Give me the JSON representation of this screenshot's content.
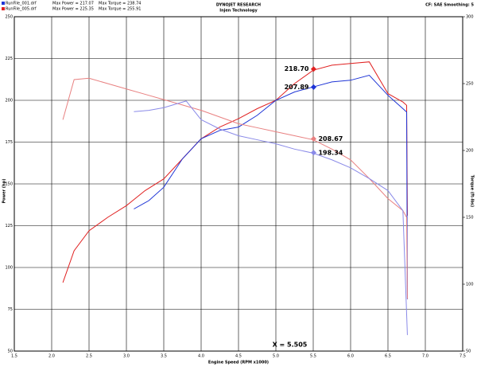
{
  "chart_data": {
    "type": "line",
    "title": "DYNOJET RESEARCH",
    "subtitle": "Injen Technology",
    "corner_note": "CF: SAE Smoothing: 5",
    "xlabel": "Engine Speed (RPM x1000)",
    "ylabel": "Power (hp)",
    "y2label": "Torque (ft-lbs)",
    "xlim": [
      1.5,
      7.5
    ],
    "xticks": [
      1.5,
      {
        "value": 2,
        "label": "2.0"
      },
      2.5,
      {
        "value": 3,
        "label": "3.0"
      },
      3.5,
      {
        "value": 4,
        "label": "4.0"
      },
      4.5,
      {
        "value": 5,
        "label": "5.0"
      },
      5.5,
      {
        "value": 6,
        "label": "6.0"
      },
      6.5,
      {
        "value": 7,
        "label": "7.0"
      },
      7.5
    ],
    "ylim": [
      50,
      250
    ],
    "yticks": [
      50,
      75,
      100,
      125,
      150,
      175,
      200,
      225,
      250
    ],
    "y2lim": [
      50,
      300
    ],
    "y2ticks": [
      50,
      100,
      150,
      200,
      250,
      300
    ],
    "grid": true,
    "legend": [
      {
        "file": "RunFile_001.drf",
        "power": "Max Power = 217.07",
        "torque": "Max Torque = 238.74",
        "color": "#1f35d6"
      },
      {
        "file": "RunFile_005.drf",
        "power": "Max Power = 225.35",
        "torque": "Max Torque = 255.91",
        "color": "#e02020"
      }
    ],
    "series": [
      {
        "color": "#e02020",
        "x": [
          2.15,
          2.3,
          2.5,
          2.75,
          3.0,
          3.25,
          3.5,
          3.75,
          4.0,
          4.25,
          4.5,
          4.75,
          5.0,
          5.25,
          5.5,
          5.75,
          6.0,
          6.25,
          6.5,
          6.7,
          6.75,
          6.76
        ],
        "values": [
          91,
          110,
          122,
          130,
          137,
          146,
          153,
          165,
          177,
          184,
          189,
          195,
          200,
          210,
          218,
          221,
          222,
          223,
          204,
          199,
          197,
          131
        ]
      },
      {
        "color": "#1f35d6",
        "x": [
          3.1,
          3.3,
          3.5,
          3.75,
          4.0,
          4.25,
          4.5,
          4.75,
          5.0,
          5.25,
          5.5,
          5.75,
          6.0,
          6.25,
          6.5,
          6.75,
          6.76
        ],
        "values": [
          135,
          140,
          148,
          165,
          177,
          182,
          184,
          191,
          200,
          205,
          208,
          211,
          212,
          215,
          203,
          193,
          81
        ]
      },
      {
        "color": "#e88080",
        "axis": "y2",
        "x": [
          2.15,
          2.3,
          2.5,
          2.75,
          3.0,
          3.25,
          3.5,
          3.75,
          4.0,
          4.25,
          4.5,
          4.75,
          5.0,
          5.25,
          5.5,
          5.75,
          6.0,
          6.25,
          6.5,
          6.7,
          6.75,
          6.76
        ],
        "values": [
          223,
          253,
          254,
          250,
          246,
          242,
          238,
          234,
          230,
          225,
          220,
          217,
          214,
          211,
          208,
          201,
          193,
          179,
          164,
          155,
          150,
          89
        ]
      },
      {
        "color": "#8a8ae8",
        "axis": "y2",
        "x": [
          3.1,
          3.3,
          3.5,
          3.8,
          4.0,
          4.25,
          4.5,
          4.75,
          5.0,
          5.25,
          5.5,
          5.75,
          6.0,
          6.25,
          6.5,
          6.7,
          6.76
        ],
        "values": [
          229,
          230,
          232,
          237,
          223,
          216,
          211,
          208,
          205,
          201,
          198,
          193,
          187,
          179,
          170,
          155,
          62
        ]
      }
    ],
    "annotations": [
      {
        "label": "218.70",
        "x": 5.505,
        "y": 218.7,
        "color": "#e02020"
      },
      {
        "label": "207.89",
        "x": 5.505,
        "y": 207.89,
        "color": "#1f35d6"
      },
      {
        "label": "208.67",
        "x": 5.505,
        "y": 208.67,
        "color": "#e88080",
        "axis": "y2"
      },
      {
        "label": "198.34",
        "x": 5.505,
        "y": 198.34,
        "color": "#8a8ae8",
        "axis": "y2"
      }
    ],
    "cursor": {
      "label": "X = 5.505",
      "x": 5.505
    }
  }
}
